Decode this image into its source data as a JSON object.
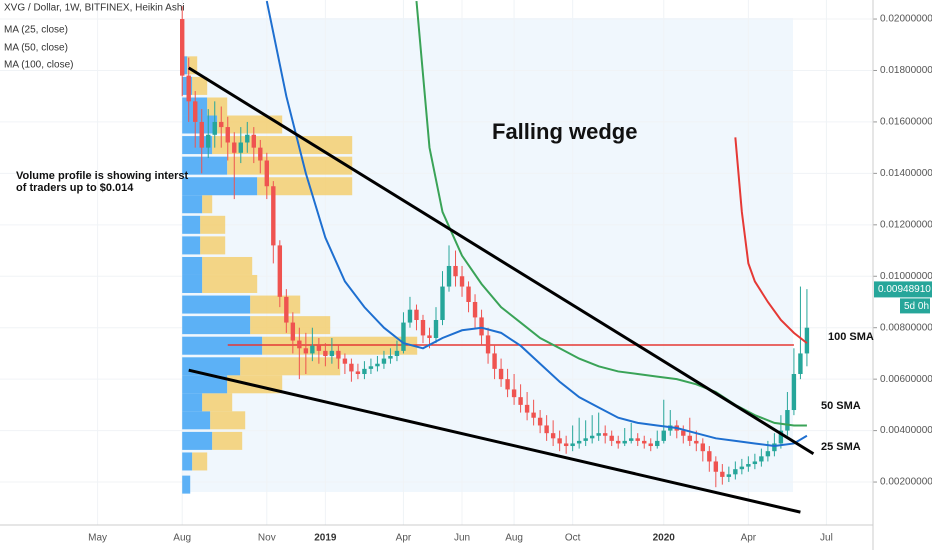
{
  "chart_data": {
    "type": "candlestick",
    "title": "XVG / Dollar, 1W, BITFINEX, Heikin Ashi",
    "legend": [
      "MA (25, close)",
      "MA (50, close)",
      "MA (100, close)"
    ],
    "xlim": [
      -28,
      106
    ],
    "xticks": [
      {
        "value": -13,
        "label": "May"
      },
      {
        "value": 0,
        "label": "Aug"
      },
      {
        "value": 13,
        "label": "Nov"
      },
      {
        "value": 22,
        "label": "2019"
      },
      {
        "value": 34,
        "label": "Apr"
      },
      {
        "value": 43,
        "label": "Jun"
      },
      {
        "value": 51,
        "label": "Aug"
      },
      {
        "value": 60,
        "label": "Oct"
      },
      {
        "value": 74,
        "label": "2020"
      },
      {
        "value": 87,
        "label": "Apr"
      },
      {
        "value": 99,
        "label": "Jul"
      }
    ],
    "ylim": [
      0.00033,
      0.02074
    ],
    "yticks": [
      {
        "value": 0.002,
        "label": "0.00200000"
      },
      {
        "value": 0.004,
        "label": "0.00400000"
      },
      {
        "value": 0.006,
        "label": "0.00600000"
      },
      {
        "value": 0.008,
        "label": "0.00800000"
      },
      {
        "value": 0.01,
        "label": "0.01000000"
      },
      {
        "value": 0.012,
        "label": "0.01200000"
      },
      {
        "value": 0.014,
        "label": "0.01400000"
      },
      {
        "value": 0.016,
        "label": "0.01600000"
      },
      {
        "value": 0.018,
        "label": "0.01800000"
      },
      {
        "value": 0.02,
        "label": "0.02000000"
      }
    ],
    "up_color": "#26a69a",
    "down_color": "#ef5350",
    "candles": [
      [
        0.02,
        0.0205,
        0.017,
        0.0178
      ],
      [
        0.0178,
        0.0185,
        0.016,
        0.0168
      ],
      [
        0.0168,
        0.0172,
        0.015,
        0.016
      ],
      [
        0.016,
        0.0165,
        0.014,
        0.015
      ],
      [
        0.015,
        0.0165,
        0.0146,
        0.0155
      ],
      [
        0.0155,
        0.0168,
        0.015,
        0.016
      ],
      [
        0.016,
        0.0166,
        0.015,
        0.0158
      ],
      [
        0.0158,
        0.0162,
        0.0145,
        0.0152
      ],
      [
        0.0152,
        0.0156,
        0.013,
        0.0148
      ],
      [
        0.0148,
        0.0158,
        0.0144,
        0.0152
      ],
      [
        0.0152,
        0.016,
        0.0148,
        0.0155
      ],
      [
        0.0155,
        0.0158,
        0.0144,
        0.015
      ],
      [
        0.015,
        0.0153,
        0.014,
        0.0145
      ],
      [
        0.0145,
        0.0148,
        0.013,
        0.0135
      ],
      [
        0.0135,
        0.0137,
        0.0105,
        0.0112
      ],
      [
        0.0112,
        0.0114,
        0.0088,
        0.0092
      ],
      [
        0.0092,
        0.0095,
        0.0078,
        0.0082
      ],
      [
        0.0082,
        0.0086,
        0.007,
        0.0075
      ],
      [
        0.0075,
        0.008,
        0.006,
        0.0072
      ],
      [
        0.0072,
        0.0078,
        0.0062,
        0.007
      ],
      [
        0.007,
        0.008,
        0.0067,
        0.0073
      ],
      [
        0.0073,
        0.0076,
        0.0066,
        0.0071
      ],
      [
        0.0071,
        0.0074,
        0.0065,
        0.0069
      ],
      [
        0.0069,
        0.0076,
        0.0066,
        0.0071
      ],
      [
        0.0071,
        0.0073,
        0.0064,
        0.0068
      ],
      [
        0.0068,
        0.007,
        0.0062,
        0.0066
      ],
      [
        0.0066,
        0.0068,
        0.0059,
        0.0063
      ],
      [
        0.0063,
        0.0066,
        0.006,
        0.0062
      ],
      [
        0.0062,
        0.0067,
        0.006,
        0.0064
      ],
      [
        0.0064,
        0.0068,
        0.0062,
        0.0065
      ],
      [
        0.0065,
        0.0069,
        0.0063,
        0.0066
      ],
      [
        0.0066,
        0.0071,
        0.0064,
        0.0068
      ],
      [
        0.0068,
        0.0072,
        0.0066,
        0.0069
      ],
      [
        0.0069,
        0.0075,
        0.0067,
        0.0071
      ],
      [
        0.0071,
        0.0086,
        0.007,
        0.0082
      ],
      [
        0.0082,
        0.0092,
        0.008,
        0.0087
      ],
      [
        0.0087,
        0.0089,
        0.0079,
        0.0083
      ],
      [
        0.0083,
        0.0085,
        0.0074,
        0.0077
      ],
      [
        0.0077,
        0.008,
        0.0072,
        0.0076
      ],
      [
        0.0076,
        0.0088,
        0.0074,
        0.0083
      ],
      [
        0.0083,
        0.0102,
        0.0081,
        0.0096
      ],
      [
        0.0096,
        0.0112,
        0.0094,
        0.0104
      ],
      [
        0.0104,
        0.011,
        0.0096,
        0.01
      ],
      [
        0.01,
        0.0104,
        0.0092,
        0.0096
      ],
      [
        0.0096,
        0.0098,
        0.0086,
        0.009
      ],
      [
        0.009,
        0.0093,
        0.008,
        0.0084
      ],
      [
        0.0084,
        0.0087,
        0.0073,
        0.0077
      ],
      [
        0.0077,
        0.008,
        0.0066,
        0.007
      ],
      [
        0.007,
        0.0073,
        0.006,
        0.0064
      ],
      [
        0.0064,
        0.0068,
        0.0057,
        0.006
      ],
      [
        0.006,
        0.0064,
        0.0053,
        0.0056
      ],
      [
        0.0056,
        0.0062,
        0.005,
        0.0053
      ],
      [
        0.0053,
        0.0058,
        0.0047,
        0.005
      ],
      [
        0.005,
        0.0055,
        0.0044,
        0.0047
      ],
      [
        0.0047,
        0.0052,
        0.0042,
        0.0045
      ],
      [
        0.0045,
        0.0048,
        0.0039,
        0.0042
      ],
      [
        0.0042,
        0.0046,
        0.0036,
        0.0039
      ],
      [
        0.0039,
        0.0044,
        0.0034,
        0.0037
      ],
      [
        0.0037,
        0.004,
        0.0032,
        0.0035
      ],
      [
        0.0035,
        0.0038,
        0.0031,
        0.0034
      ],
      [
        0.0034,
        0.0042,
        0.0032,
        0.0035
      ],
      [
        0.0035,
        0.0045,
        0.0033,
        0.0036
      ],
      [
        0.0036,
        0.0044,
        0.0034,
        0.0037
      ],
      [
        0.0037,
        0.0046,
        0.0035,
        0.0038
      ],
      [
        0.0038,
        0.0047,
        0.0036,
        0.0039
      ],
      [
        0.0039,
        0.0042,
        0.0035,
        0.0038
      ],
      [
        0.0038,
        0.004,
        0.0034,
        0.0036
      ],
      [
        0.0036,
        0.0038,
        0.0033,
        0.0035
      ],
      [
        0.0035,
        0.0041,
        0.0034,
        0.0036
      ],
      [
        0.0036,
        0.0043,
        0.0035,
        0.0037
      ],
      [
        0.0037,
        0.0039,
        0.0034,
        0.0036
      ],
      [
        0.0036,
        0.0038,
        0.0033,
        0.0035
      ],
      [
        0.0035,
        0.0037,
        0.0032,
        0.0034
      ],
      [
        0.0034,
        0.004,
        0.0033,
        0.0036
      ],
      [
        0.0036,
        0.0052,
        0.0035,
        0.004
      ],
      [
        0.004,
        0.0048,
        0.0038,
        0.0042
      ],
      [
        0.0042,
        0.0044,
        0.0037,
        0.004
      ],
      [
        0.004,
        0.0042,
        0.0035,
        0.0038
      ],
      [
        0.0038,
        0.0045,
        0.0034,
        0.0036
      ],
      [
        0.0036,
        0.004,
        0.0032,
        0.0035
      ],
      [
        0.0035,
        0.0037,
        0.0028,
        0.0032
      ],
      [
        0.0032,
        0.0034,
        0.0024,
        0.0028
      ],
      [
        0.0028,
        0.003,
        0.0018,
        0.0024
      ],
      [
        0.0024,
        0.0027,
        0.0019,
        0.0022
      ],
      [
        0.0022,
        0.0026,
        0.002,
        0.0023
      ],
      [
        0.0023,
        0.0028,
        0.0021,
        0.0025
      ],
      [
        0.0025,
        0.0029,
        0.0023,
        0.0026
      ],
      [
        0.0026,
        0.003,
        0.0024,
        0.0027
      ],
      [
        0.0027,
        0.0031,
        0.0025,
        0.0028
      ],
      [
        0.0028,
        0.0033,
        0.0026,
        0.003
      ],
      [
        0.003,
        0.0036,
        0.0028,
        0.0032
      ],
      [
        0.0032,
        0.0039,
        0.003,
        0.0035
      ],
      [
        0.0035,
        0.0046,
        0.0033,
        0.004
      ],
      [
        0.004,
        0.0055,
        0.0038,
        0.0048
      ],
      [
        0.0048,
        0.0072,
        0.0046,
        0.0062
      ],
      [
        0.0062,
        0.0096,
        0.006,
        0.007
      ],
      [
        0.007,
        0.0095,
        0.0065,
        0.008
      ]
    ],
    "series": [
      {
        "name": "25 SMA",
        "color": "#1e6fd0",
        "x": [
          13,
          16,
          19,
          22,
          25,
          28,
          31,
          34,
          37,
          40,
          43,
          46,
          49,
          52,
          55,
          58,
          61,
          64,
          67,
          70,
          73,
          76,
          79,
          82,
          85,
          88,
          91,
          94,
          96
        ],
        "values": [
          0.0207,
          0.017,
          0.014,
          0.0115,
          0.0098,
          0.0088,
          0.008,
          0.0074,
          0.0072,
          0.0076,
          0.0079,
          0.008,
          0.0078,
          0.0073,
          0.0066,
          0.0059,
          0.0053,
          0.0049,
          0.0045,
          0.0043,
          0.0042,
          0.0041,
          0.0039,
          0.0037,
          0.0036,
          0.0035,
          0.0034,
          0.0035,
          0.0038
        ]
      },
      {
        "name": "50 SMA",
        "color": "#3aa357",
        "x": [
          36,
          38,
          40,
          43,
          46,
          49,
          52,
          55,
          58,
          61,
          64,
          67,
          70,
          73,
          76,
          79,
          82,
          85,
          88,
          91,
          94,
          96
        ],
        "values": [
          0.0207,
          0.015,
          0.0125,
          0.0108,
          0.0097,
          0.0088,
          0.0082,
          0.0076,
          0.0072,
          0.0068,
          0.0065,
          0.0063,
          0.0062,
          0.0061,
          0.006,
          0.0058,
          0.0055,
          0.005,
          0.0046,
          0.0043,
          0.0042,
          0.0042
        ]
      },
      {
        "name": "100 SMA",
        "color": "#e53935",
        "x": [
          85,
          86,
          87,
          88,
          90,
          92,
          94,
          96
        ],
        "values": [
          0.0154,
          0.0125,
          0.0105,
          0.0098,
          0.009,
          0.0083,
          0.0078,
          0.0074
        ]
      }
    ],
    "level_line": {
      "x": [
        7,
        94
      ],
      "values": [
        0.00733,
        0.00733
      ],
      "color": "#e53935"
    },
    "wedge_lines": [
      {
        "x": [
          1,
          97
        ],
        "values": [
          0.0181,
          0.0031
        ]
      },
      {
        "x": [
          1,
          95
        ],
        "values": [
          0.00635,
          0.00083
        ]
      }
    ],
    "volume_profile": {
      "prices": [
        0.0019,
        0.0028,
        0.0036,
        0.0044,
        0.0051,
        0.0058,
        0.0065,
        0.0073,
        0.0081,
        0.0089,
        0.0097,
        0.0104,
        0.0112,
        0.012,
        0.0128,
        0.0135,
        0.0143,
        0.0151,
        0.0159,
        0.0166,
        0.0174,
        0.0182
      ],
      "up": [
        8,
        10,
        30,
        28,
        20,
        45,
        58,
        80,
        68,
        68,
        20,
        20,
        18,
        18,
        20,
        75,
        45,
        30,
        35,
        25,
        10,
        5
      ],
      "down": [
        0,
        15,
        30,
        35,
        30,
        55,
        100,
        155,
        80,
        50,
        55,
        50,
        25,
        25,
        10,
        95,
        125,
        140,
        65,
        20,
        15,
        10
      ],
      "up_color": "#42a5f5",
      "down_color": "#f4c95d"
    },
    "last_price": 0.0094891,
    "last_price_label": "0.00948910",
    "countdown": "5d 0h",
    "annotations": [
      "Falling wedge",
      "Volume profile is showing interst",
      "of traders up to $0.014",
      "100 SMA",
      "50 SMA",
      "25 SMA"
    ]
  }
}
